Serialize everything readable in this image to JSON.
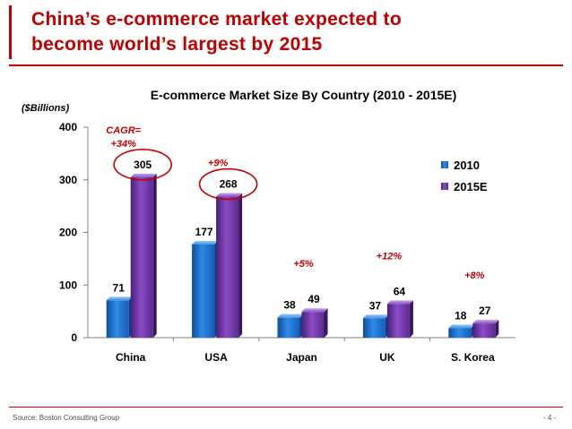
{
  "slide": {
    "title_line1": "China’s e-commerce market expected to",
    "title_line2": "become world’s largest by 2015",
    "source": "Source:  Boston Consulting Group",
    "page_number": "- 4 -"
  },
  "colors": {
    "accent": "#c00000",
    "series_2010": "#1f78d6",
    "series_2015": "#7a3fb0"
  },
  "chart_data": {
    "type": "bar",
    "title": "E-commerce Market Size By Country (2010 - 2015E)",
    "ylabel": "($Billions)",
    "xlabel": "",
    "ylim": [
      0,
      400
    ],
    "yticks": [
      "0",
      "100",
      "200",
      "300",
      "400"
    ],
    "ytick_values": [
      0,
      100,
      200,
      300,
      400
    ],
    "categories": [
      "China",
      "USA",
      "Japan",
      "UK",
      "S. Korea"
    ],
    "series": [
      {
        "name": "2010",
        "values": [
          71,
          177,
          38,
          37,
          18
        ],
        "labels": [
          "71",
          "177",
          "38",
          "37",
          "18"
        ]
      },
      {
        "name": "2015E",
        "values": [
          305,
          268,
          49,
          64,
          27
        ],
        "labels": [
          "305",
          "268",
          "49",
          "64",
          "27"
        ]
      }
    ],
    "cagr_labels": [
      "CAGR=\n+34%",
      "+9%",
      "+5%",
      "+12%",
      "+8%"
    ],
    "legend_position": "right",
    "highlighted_values": [
      "305",
      "268"
    ]
  }
}
